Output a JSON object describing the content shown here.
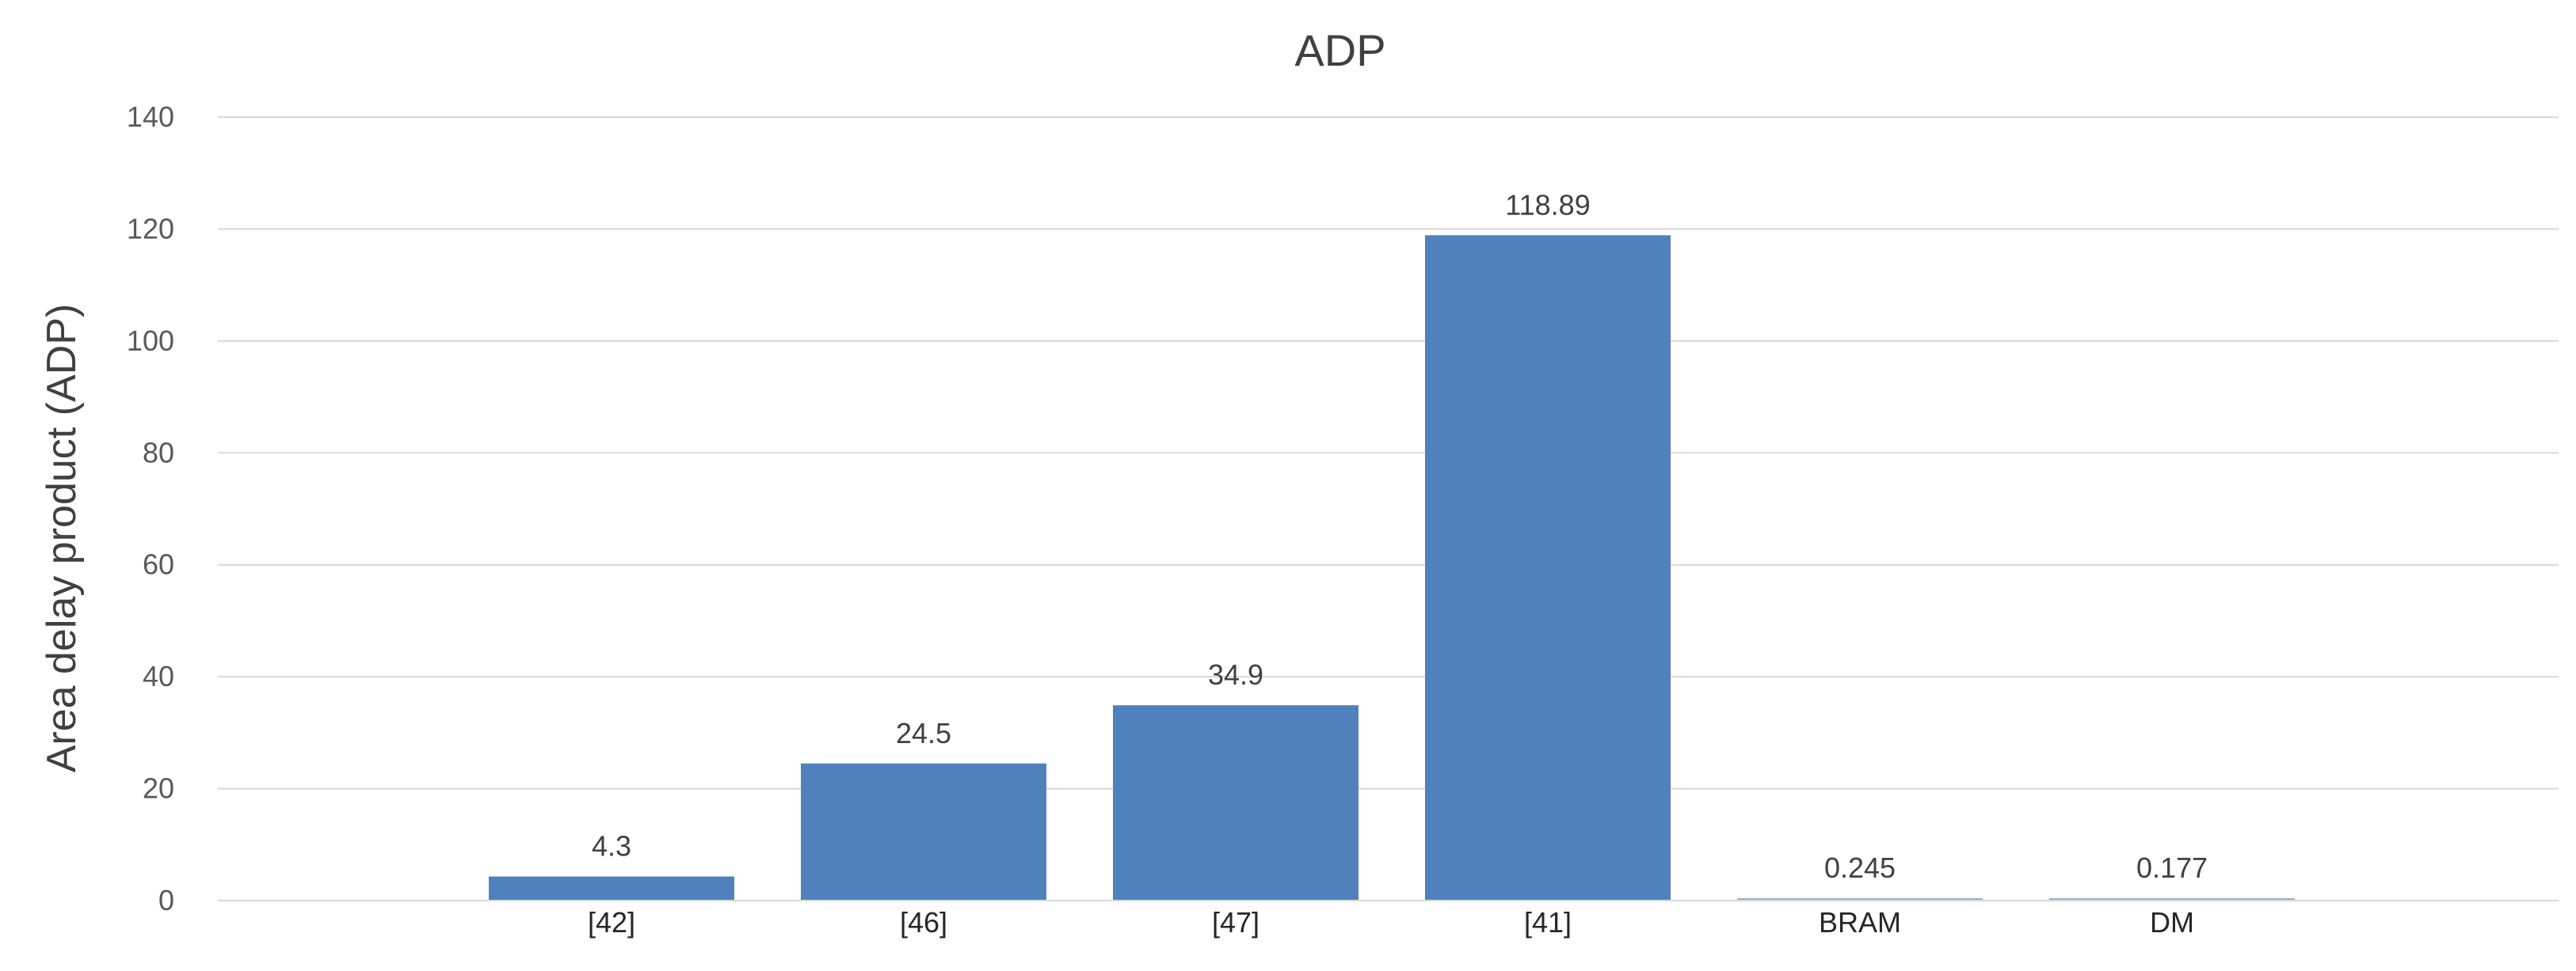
{
  "chart_data": {
    "type": "bar",
    "title": "ADP",
    "xlabel": "",
    "ylabel": "Area delay product (ADP)",
    "categories": [
      "[42]",
      "[46]",
      "[47]",
      "[41]",
      "BRAM",
      "DM"
    ],
    "values": [
      4.3,
      24.5,
      34.9,
      118.89,
      0.245,
      0.177
    ],
    "data_labels": [
      "4.3",
      "24.5",
      "34.9",
      "118.89",
      "0.245",
      "0.177"
    ],
    "ylim": [
      0,
      140
    ],
    "yticks": [
      0,
      20,
      40,
      60,
      80,
      100,
      120,
      140
    ],
    "grid": true,
    "legend": "none",
    "colors": {
      "bar": "#4f81bd",
      "bar_small": "#8fb5d8",
      "grid": "#d9d9d9",
      "text": "#404040"
    }
  }
}
